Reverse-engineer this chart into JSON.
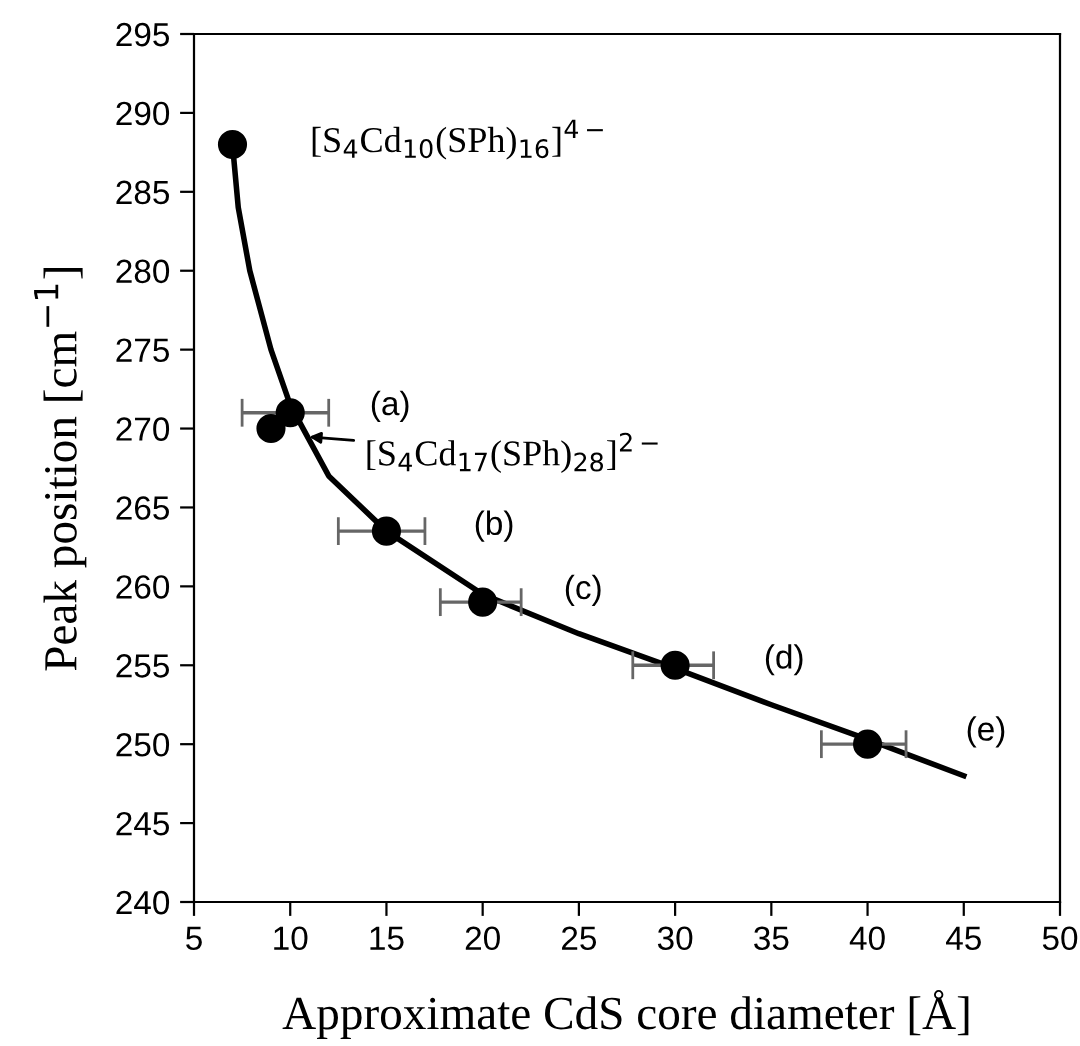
{
  "chart_data": {
    "type": "scatter",
    "xlabel": "Approximate CdS core diameter [Å]",
    "ylabel": "Peak position [cm$^{−1}$]",
    "xlim": [
      5,
      50
    ],
    "xticks": [
      5,
      10,
      15,
      20,
      25,
      30,
      35,
      40,
      45,
      50
    ],
    "ylim": [
      240,
      295
    ],
    "yticks": [
      240,
      245,
      250,
      255,
      260,
      265,
      270,
      275,
      280,
      285,
      290,
      295
    ],
    "grid": false,
    "legend": false,
    "marker": "circle",
    "series": [
      {
        "type": "line",
        "color": "#000000",
        "line_style": "solid",
        "marker": "none",
        "x": [
          7,
          7.3,
          7.9,
          9,
          10,
          12,
          15,
          20,
          25,
          30,
          35,
          40,
          45
        ],
        "values": [
          288,
          284,
          280,
          275,
          271.5,
          267,
          263.5,
          259.5,
          257,
          254.8,
          252.5,
          250.3,
          248
        ]
      },
      {
        "color": "#000000",
        "x": [
          7,
          9,
          10,
          15,
          20,
          30,
          40
        ],
        "values": [
          288,
          270,
          271,
          263.5,
          259,
          255,
          250
        ],
        "xerrors": [
          null,
          null,
          [
            7.5,
            12
          ],
          [
            12.5,
            17
          ],
          [
            17.8,
            22
          ],
          [
            27.8,
            32
          ],
          [
            37.6,
            42
          ]
        ]
      }
    ],
    "annotations": [
      "[S$_{4}$Cd$_{10}$(SPh)$_{16}$]$^{4−}$",
      {
        "text": "[S$_{4}$Cd$_{17}$(SPh)$_{28}$]$^{2−}$",
        "x": 10.7,
        "y": 269.5
      },
      "(a)",
      "(b)",
      "(c)",
      "(d)",
      "(e)"
    ]
  }
}
